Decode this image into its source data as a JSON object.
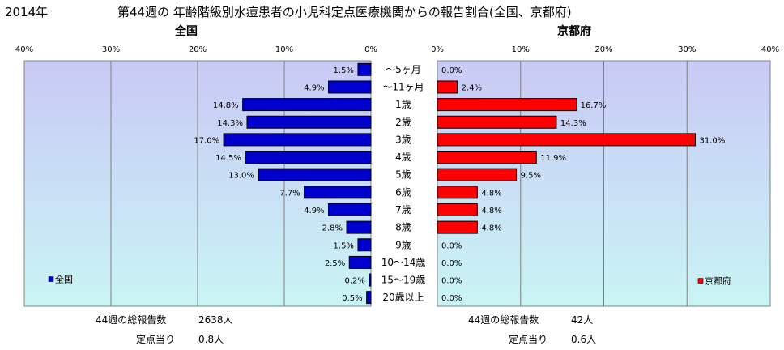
{
  "header": {
    "year": "2014年",
    "title": "第44週の 年齢階級別水痘患者の小児科定点医療機関からの報告割合(全国、京都府)"
  },
  "colors": {
    "national_bar": "#0000cc",
    "kyoto_bar": "#ff0000",
    "plot_bg_top": "#c9c9f5",
    "plot_bg_bottom": "#c9f5f5"
  },
  "chart_data": [
    {
      "type": "bar",
      "orientation": "horizontal",
      "direction": "reversed",
      "title": "全国",
      "categories": [
        "～5ヶ月",
        "～11ヶ月",
        "1歳",
        "2歳",
        "3歳",
        "4歳",
        "5歳",
        "6歳",
        "7歳",
        "8歳",
        "9歳",
        "10～14歳",
        "15～19歳",
        "20歳以上"
      ],
      "series": [
        {
          "name": "全国",
          "values": [
            1.5,
            4.9,
            14.8,
            14.3,
            17.0,
            14.5,
            13.0,
            7.7,
            4.9,
            2.8,
            1.5,
            2.5,
            0.2,
            0.5
          ]
        }
      ],
      "data_labels": [
        "1.5%",
        "4.9%",
        "14.8%",
        "14.3%",
        "17.0%",
        "14.5%",
        "13.0%",
        "7.7%",
        "4.9%",
        "2.8%",
        "1.5%",
        "2.5%",
        "0.2%",
        "0.5%"
      ],
      "xlim": [
        0,
        40
      ],
      "ticks": [
        40,
        30,
        20,
        10,
        0
      ],
      "tick_labels": [
        "40%",
        "30%",
        "20%",
        "10%",
        "0%"
      ],
      "grid": true,
      "legend_position": "lower-left",
      "footer": {
        "total_label": "44週の総報告数",
        "total_value": "2638人",
        "per_label": "定点当り",
        "per_value": "0.8人"
      }
    },
    {
      "type": "bar",
      "orientation": "horizontal",
      "title": "京都府",
      "categories": [
        "～5ヶ月",
        "～11ヶ月",
        "1歳",
        "2歳",
        "3歳",
        "4歳",
        "5歳",
        "6歳",
        "7歳",
        "8歳",
        "9歳",
        "10～14歳",
        "15～19歳",
        "20歳以上"
      ],
      "series": [
        {
          "name": "京都府",
          "values": [
            0.0,
            2.4,
            16.7,
            14.3,
            31.0,
            11.9,
            9.5,
            4.8,
            4.8,
            4.8,
            0.0,
            0.0,
            0.0,
            0.0
          ]
        }
      ],
      "data_labels": [
        "0.0%",
        "2.4%",
        "16.7%",
        "14.3%",
        "31.0%",
        "11.9%",
        "9.5%",
        "4.8%",
        "4.8%",
        "4.8%",
        "0.0%",
        "0.0%",
        "0.0%",
        "0.0%"
      ],
      "xlim": [
        0,
        40
      ],
      "ticks": [
        0,
        10,
        20,
        30,
        40
      ],
      "tick_labels": [
        "0%",
        "10%",
        "20%",
        "30%",
        "40%"
      ],
      "grid": true,
      "legend_position": "lower-right",
      "footer": {
        "total_label": "44週の総報告数",
        "total_value": "42人",
        "per_label": "定点当り",
        "per_value": "0.6人"
      }
    }
  ]
}
